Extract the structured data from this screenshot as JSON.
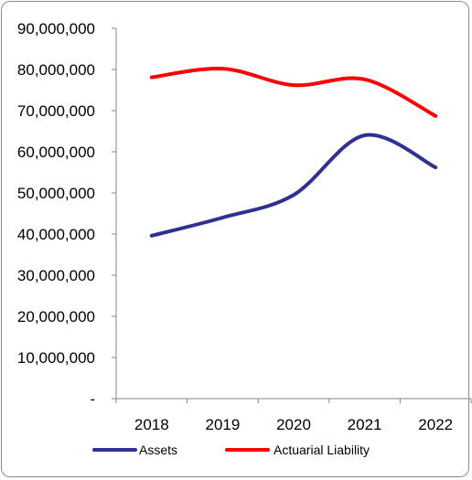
{
  "chart_data": {
    "type": "line",
    "title": "",
    "xlabel": "",
    "ylabel": "",
    "categories": [
      "2018",
      "2019",
      "2020",
      "2021",
      "2022"
    ],
    "ylim": [
      0,
      90000000
    ],
    "yticks": [
      0,
      10000000,
      20000000,
      30000000,
      40000000,
      50000000,
      60000000,
      70000000,
      80000000,
      90000000
    ],
    "ytick_labels": [
      "-",
      "10,000,000",
      "20,000,000",
      "30,000,000",
      "40,000,000",
      "50,000,000",
      "60,000,000",
      "70,000,000",
      "80,000,000",
      "90,000,000"
    ],
    "grid": false,
    "smooth": true,
    "legend": "bottom",
    "series": [
      {
        "name": "Assets",
        "color": "#2e3192",
        "values": [
          39600000,
          44000000,
          49500000,
          64000000,
          56200000
        ]
      },
      {
        "name": "Actuarial Liability",
        "color": "#ff0000",
        "values": [
          78100000,
          80200000,
          76200000,
          77600000,
          68700000
        ]
      }
    ]
  }
}
